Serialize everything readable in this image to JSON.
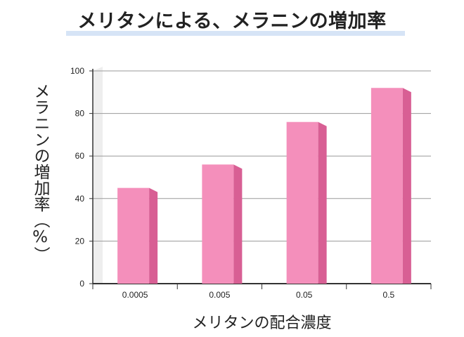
{
  "chart_data": {
    "type": "bar",
    "title": "メリタンによる、メラニンの増加率",
    "xlabel": "メリタンの配合濃度",
    "ylabel": "メラニンの増加率（%）",
    "categories": [
      "0.0005",
      "0.005",
      "0.05",
      "0.5"
    ],
    "values": [
      45,
      56,
      76,
      92
    ],
    "ylim": [
      0,
      100
    ],
    "yticks": [
      0,
      20,
      40,
      60,
      80,
      100
    ],
    "grid": true,
    "colors": {
      "bar_front": "#f48fbb",
      "bar_side": "#d85f94",
      "grid": "#9a9a9a",
      "axis": "#333333",
      "wall": "#eeeeee"
    }
  }
}
